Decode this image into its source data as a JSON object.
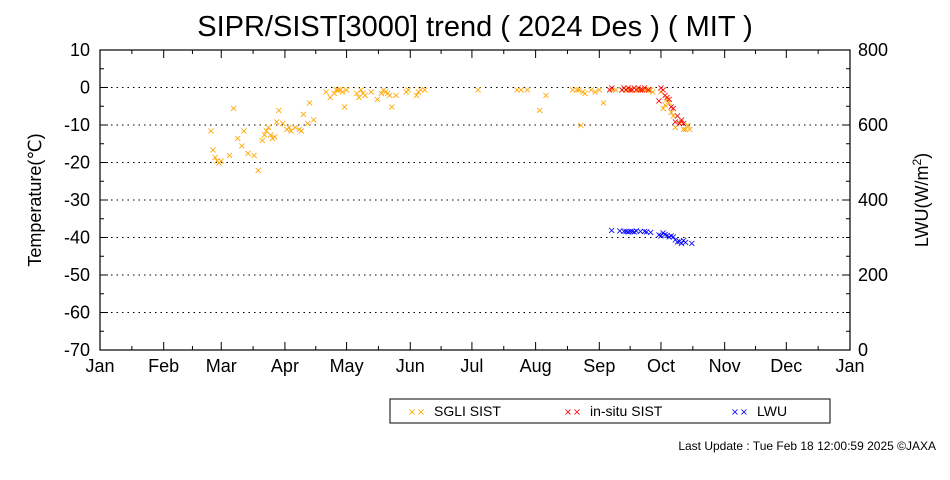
{
  "chart_data": {
    "type": "scatter",
    "title": "SIPR/SIST[3000] trend ( 2024 Des ) ( MIT )",
    "ylabel_left": "Temperature(℃)",
    "ylabel_right": "LWU(W/m",
    "ylabel_right_superscript": "2",
    "ylabel_right_suffix": ")",
    "x_tick_labels": [
      "Jan",
      "Feb",
      "Mar",
      "Apr",
      "May",
      "Jun",
      "Jul",
      "Aug",
      "Sep",
      "Oct",
      "Nov",
      "Dec",
      "Jan"
    ],
    "x_month_start_doy": [
      1,
      32,
      60,
      91,
      121,
      152,
      182,
      213,
      244,
      274,
      305,
      335,
      366
    ],
    "xlim_doy": [
      1,
      366
    ],
    "ylim_left": [
      -70,
      10
    ],
    "y_ticks_left": [
      10,
      0,
      -10,
      -20,
      -30,
      -40,
      -50,
      -60,
      -70
    ],
    "ylim_right": [
      0,
      800
    ],
    "y_ticks_right": [
      800,
      600,
      400,
      200,
      0
    ],
    "grid": "horizontal-dotted",
    "legend_placement": "bottom",
    "marker": "×",
    "series": [
      {
        "name": "SGLI SIST",
        "color": "#ffa500",
        "axis": "left",
        "points": [
          [
            55,
            -11.5
          ],
          [
            56,
            -16.5
          ],
          [
            57,
            -18.5
          ],
          [
            58,
            -19.5
          ],
          [
            59,
            -20
          ],
          [
            60,
            -19.5
          ],
          [
            64,
            -18
          ],
          [
            66,
            -5.5
          ],
          [
            68,
            -13.5
          ],
          [
            70,
            -15.5
          ],
          [
            71,
            -11.5
          ],
          [
            73,
            -17.5
          ],
          [
            76,
            -18
          ],
          [
            78,
            -22
          ],
          [
            80,
            -14
          ],
          [
            81,
            -12.5
          ],
          [
            82,
            -11.5
          ],
          [
            83,
            -10.5
          ],
          [
            84,
            -12.5
          ],
          [
            85,
            -13.5
          ],
          [
            86,
            -13
          ],
          [
            87,
            -9
          ],
          [
            88,
            -6
          ],
          [
            90,
            -9.5
          ],
          [
            92,
            -11
          ],
          [
            93,
            -10.5
          ],
          [
            94,
            -11.5
          ],
          [
            96,
            -10.5
          ],
          [
            98,
            -11
          ],
          [
            99,
            -11.5
          ],
          [
            100,
            -7
          ],
          [
            102,
            -9.5
          ],
          [
            103,
            -4
          ],
          [
            105,
            -8.5
          ],
          [
            111,
            -1
          ],
          [
            113,
            -2.5
          ],
          [
            115,
            -1.5
          ],
          [
            116,
            -0.5
          ],
          [
            117,
            -0.5
          ],
          [
            118,
            -0.5
          ],
          [
            119,
            -1
          ],
          [
            120,
            -5
          ],
          [
            121,
            -0.5
          ],
          [
            126,
            -1.5
          ],
          [
            127,
            -2.5
          ],
          [
            128,
            -0.5
          ],
          [
            129,
            -1.5
          ],
          [
            130,
            -2
          ],
          [
            133,
            -1
          ],
          [
            136,
            -3
          ],
          [
            138,
            -1.5
          ],
          [
            139,
            -0.5
          ],
          [
            140,
            -1
          ],
          [
            141,
            -1.5
          ],
          [
            142,
            -2
          ],
          [
            143,
            -5
          ],
          [
            145,
            -2
          ],
          [
            150,
            -1
          ],
          [
            151,
            -0.5
          ],
          [
            155,
            -2
          ],
          [
            156,
            -1
          ],
          [
            157,
            -0.5
          ],
          [
            159,
            -0.5
          ],
          [
            185,
            -0.5
          ],
          [
            204,
            -0.5
          ],
          [
            206,
            -0.5
          ],
          [
            209,
            -0.5
          ],
          [
            215,
            -6
          ],
          [
            218,
            -2
          ],
          [
            231,
            -0.5
          ],
          [
            233,
            -0.5
          ],
          [
            234,
            -0.5
          ],
          [
            235,
            -10
          ],
          [
            236,
            -1
          ],
          [
            237,
            -1.5
          ],
          [
            240,
            -0.5
          ],
          [
            242,
            -1
          ],
          [
            244,
            -0.5
          ],
          [
            246,
            -4
          ],
          [
            250,
            -0.5
          ],
          [
            252,
            -0.5
          ],
          [
            255,
            -0.5
          ],
          [
            257,
            -0.5
          ],
          [
            258,
            -0.5
          ],
          [
            259,
            -0.5
          ],
          [
            260,
            -0.5
          ],
          [
            262,
            -0.5
          ],
          [
            263,
            -0.5
          ],
          [
            264,
            -0.5
          ],
          [
            266,
            -0.5
          ],
          [
            267,
            -0.5
          ],
          [
            268,
            -0.5
          ],
          [
            269,
            -0.5
          ],
          [
            270,
            -1
          ],
          [
            274,
            -1
          ],
          [
            275,
            -5.5
          ],
          [
            276,
            -4.5
          ],
          [
            277,
            -3
          ],
          [
            278,
            -4
          ],
          [
            279,
            -6.5
          ],
          [
            280,
            -7.5
          ],
          [
            281,
            -10.5
          ],
          [
            283,
            -9.5
          ],
          [
            284,
            -9
          ],
          [
            285,
            -11
          ],
          [
            286,
            -11
          ],
          [
            287,
            -10
          ],
          [
            288,
            -11
          ]
        ]
      },
      {
        "name": "in-situ SIST",
        "color": "#ff0000",
        "axis": "left",
        "points": [
          [
            249,
            -0.5
          ],
          [
            250,
            0
          ],
          [
            255,
            -0.5
          ],
          [
            256,
            0
          ],
          [
            257,
            -0.5
          ],
          [
            258,
            0
          ],
          [
            259,
            -0.5
          ],
          [
            260,
            -0.5
          ],
          [
            261,
            0
          ],
          [
            262,
            -0.5
          ],
          [
            263,
            0
          ],
          [
            264,
            -0.5
          ],
          [
            265,
            -0.5
          ],
          [
            266,
            0
          ],
          [
            268,
            -0.5
          ],
          [
            273,
            -3.5
          ],
          [
            274,
            0
          ],
          [
            275,
            -0.5
          ],
          [
            276,
            -2
          ],
          [
            277,
            -2.5
          ],
          [
            278,
            -3
          ],
          [
            279,
            -5
          ],
          [
            280,
            -5.5
          ],
          [
            281,
            -9
          ],
          [
            282,
            -7.5
          ],
          [
            283,
            -9.5
          ],
          [
            284,
            -8.5
          ],
          [
            285,
            -9.5
          ]
        ]
      },
      {
        "name": "LWU",
        "color": "#0000ff",
        "axis": "right",
        "points": [
          [
            250,
            320
          ],
          [
            254,
            319
          ],
          [
            256,
            317
          ],
          [
            257,
            318
          ],
          [
            258,
            316
          ],
          [
            259,
            318
          ],
          [
            260,
            317
          ],
          [
            261,
            316
          ],
          [
            262,
            319
          ],
          [
            264,
            318
          ],
          [
            266,
            318
          ],
          [
            267,
            316
          ],
          [
            269,
            315
          ],
          [
            273,
            308
          ],
          [
            274,
            305
          ],
          [
            275,
            313
          ],
          [
            276,
            309
          ],
          [
            277,
            307
          ],
          [
            278,
            303
          ],
          [
            279,
            305
          ],
          [
            280,
            303
          ],
          [
            281,
            295
          ],
          [
            282,
            289
          ],
          [
            283,
            291
          ],
          [
            284,
            286
          ],
          [
            285,
            293
          ],
          [
            286,
            288
          ],
          [
            289,
            285
          ]
        ]
      }
    ]
  },
  "footer": "Last Update : Tue Feb 18 12:00:59 2025  ©JAXA"
}
